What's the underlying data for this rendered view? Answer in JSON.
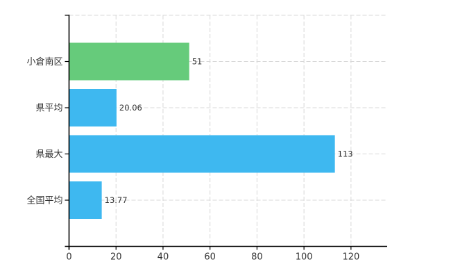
{
  "chart_data": {
    "type": "bar",
    "orientation": "horizontal",
    "title": "",
    "xlabel": "",
    "ylabel": "",
    "categories": [
      "小倉南区",
      "県平均",
      "県最大",
      "全国平均"
    ],
    "values": [
      51,
      20.06,
      113,
      13.77
    ],
    "value_labels": [
      "51",
      "20.06",
      "113",
      "13.77"
    ],
    "bar_colors": [
      "#66CB7B",
      "#3EB8F0",
      "#3EB8F0",
      "#3EB8F0"
    ],
    "x_ticks": [
      0,
      20,
      40,
      60,
      80,
      100,
      120
    ],
    "x_tick_labels": [
      "0",
      "20",
      "40",
      "60",
      "80",
      "100",
      "120"
    ],
    "xlim": [
      0,
      135.4
    ],
    "grid": true,
    "legend_position": "none",
    "colors": {
      "background": "#ffffff",
      "grid": "#d8d8d8",
      "axis": "#000000",
      "text": "#333333"
    }
  }
}
